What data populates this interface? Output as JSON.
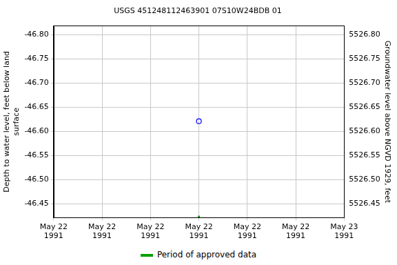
{
  "chart_data": {
    "type": "scatter",
    "title": "USGS 451248112463901 07S10W24BDB 01",
    "y_label": "Depth to water level, feet below land surface",
    "y2_label": "Groundwater level above NGVD 1929, feet",
    "x": [
      12
    ],
    "series": [
      {
        "values": [
          -46.621
        ],
        "color": "#0000ff",
        "marker": "circle"
      }
    ],
    "approved_periods": {
      "name": "Period of approved data",
      "color": "#00a000",
      "x": [
        [
          12,
          12
        ]
      ]
    },
    "xlim": [
      0,
      24
    ],
    "xticks": [
      {
        "value": 0,
        "label": "May 22 1991"
      },
      {
        "value": 4,
        "label": "May 22 1991"
      },
      {
        "value": 8,
        "label": "May 22 1991"
      },
      {
        "value": 12,
        "label": "May 22 1991"
      },
      {
        "value": 16,
        "label": "May 22 1991"
      },
      {
        "value": 20,
        "label": "May 22 1991"
      },
      {
        "value": 24,
        "label": "May 23 1991"
      }
    ],
    "ylim": [
      -46.421,
      -46.819
    ],
    "yticks": [
      {
        "value": -46.8,
        "label": "-46.80"
      },
      {
        "value": -46.75,
        "label": "-46.75"
      },
      {
        "value": -46.7,
        "label": "-46.70"
      },
      {
        "value": -46.65,
        "label": "-46.65"
      },
      {
        "value": -46.6,
        "label": "-46.60"
      },
      {
        "value": -46.55,
        "label": "-46.55"
      },
      {
        "value": -46.5,
        "label": "-46.50"
      },
      {
        "value": -46.45,
        "label": "-46.45"
      }
    ],
    "y2lim": [
      5526.421,
      5526.819
    ],
    "y2ticks": [
      {
        "value": 5526.8,
        "label": "5526.80"
      },
      {
        "value": 5526.75,
        "label": "5526.75"
      },
      {
        "value": 5526.7,
        "label": "5526.70"
      },
      {
        "value": 5526.65,
        "label": "5526.65"
      },
      {
        "value": 5526.6,
        "label": "5526.60"
      },
      {
        "value": 5526.55,
        "label": "5526.55"
      },
      {
        "value": 5526.5,
        "label": "5526.50"
      },
      {
        "value": 5526.45,
        "label": "5526.45"
      }
    ],
    "grid": true
  }
}
